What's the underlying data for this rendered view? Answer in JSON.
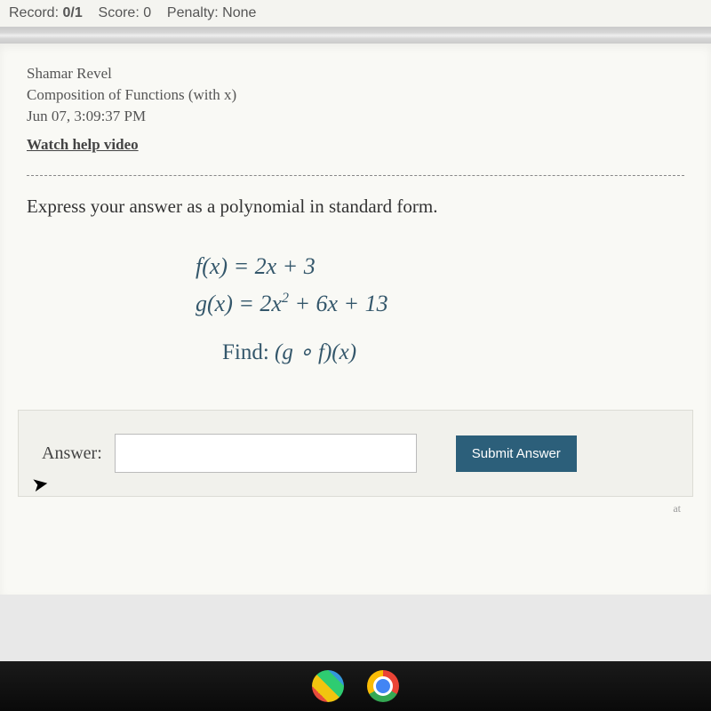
{
  "topbar": {
    "record_label": "Record:",
    "record_value": "0/1",
    "score_label": "Score:",
    "score_value": "0",
    "penalty_label": "Penalty:",
    "penalty_value": "None"
  },
  "header": {
    "student": "Shamar Revel",
    "topic": "Composition of Functions (with x)",
    "timestamp": "Jun 07, 3:09:37 PM",
    "help_link": "Watch help video"
  },
  "prompt": "Express your answer as a polynomial in standard form.",
  "math": {
    "line1_lhs": "f(x) = ",
    "line1_rhs": "2x + 3",
    "line2_lhs": "g(x) = ",
    "line2_rhs_a": "2x",
    "line2_exp": "2",
    "line2_rhs_b": " + 6x + 13",
    "find_label": "Find: ",
    "find_expr": "(g ∘ f)(x)"
  },
  "answer": {
    "label": "Answer:",
    "placeholder": "",
    "value": "",
    "submit": "Submit Answer"
  },
  "attr": "at",
  "colors": {
    "math_text": "#34576b",
    "submit_bg": "#2c5f7a",
    "panel_bg": "#f9f9f5"
  }
}
